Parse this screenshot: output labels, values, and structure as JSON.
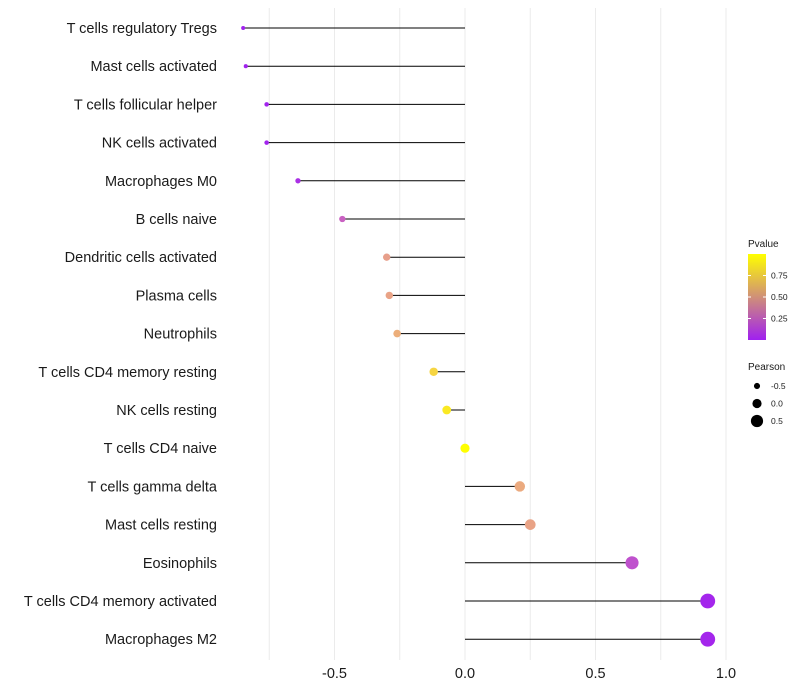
{
  "chart_data": {
    "type": "lollipop",
    "title": "",
    "xlabel": "",
    "ylabel": "",
    "xlim": [
      -0.9,
      1.0
    ],
    "x_ticks": [
      -0.5,
      0.0,
      0.5,
      1.0
    ],
    "x_tick_labels": [
      "-0.5",
      "0.0",
      "0.5",
      "1.0"
    ],
    "grid": true,
    "categories": [
      "T cells regulatory  Tregs",
      "Mast cells activated",
      "T cells follicular helper",
      "NK cells activated",
      "Macrophages M0",
      "B cells naive",
      "Dendritic cells activated",
      "Plasma cells",
      "Neutrophils",
      "T cells CD4 memory resting",
      "NK cells resting",
      "T cells CD4 naive",
      "T cells gamma delta",
      "Mast cells resting",
      "Eosinophils",
      "T cells CD4 memory activated",
      "Macrophages M2"
    ],
    "pearson": [
      -0.85,
      -0.84,
      -0.76,
      -0.76,
      -0.64,
      -0.47,
      -0.3,
      -0.29,
      -0.26,
      -0.12,
      -0.07,
      0.0,
      0.21,
      0.25,
      0.64,
      0.93,
      0.93
    ],
    "pvalue": [
      0.01,
      0.01,
      0.02,
      0.02,
      0.08,
      0.33,
      0.63,
      0.65,
      0.7,
      0.85,
      0.92,
      1.0,
      0.68,
      0.65,
      0.25,
      0.03,
      0.03
    ],
    "legend": {
      "pvalue_title": "Pvalue",
      "pvalue_ticks": [
        0.25,
        0.5,
        0.75
      ],
      "pvalue_tick_labels": [
        "0.25",
        "0.50",
        "0.75"
      ],
      "pvalue_colors": [
        "#a020f0",
        "#ffff00"
      ],
      "pearson_title": "Pearson",
      "pearson_values": [
        -0.5,
        0.0,
        0.5
      ],
      "pearson_labels": [
        "-0.5",
        "0.0",
        "0.5"
      ],
      "placement": "right"
    }
  }
}
